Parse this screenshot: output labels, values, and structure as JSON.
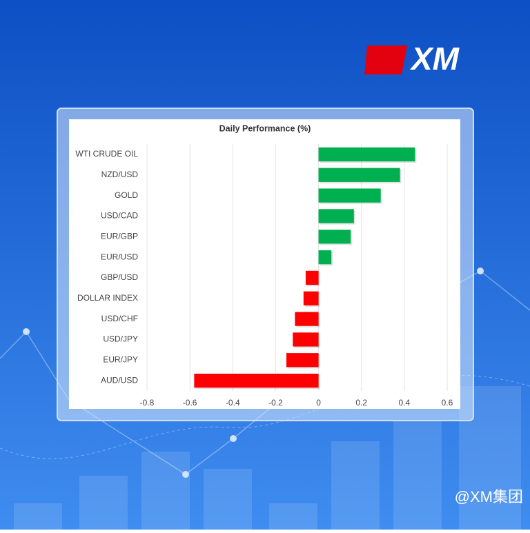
{
  "brand": {
    "logo": "XM",
    "watermark": "@XM集团"
  },
  "chart_data": {
    "type": "bar",
    "orientation": "horizontal",
    "title": "Daily Performance (%)",
    "categories": [
      "WTI CRUDE OIL",
      "NZD/USD",
      "GOLD",
      "USD/CAD",
      "EUR/GBP",
      "EUR/USD",
      "GBP/USD",
      "DOLLAR INDEX",
      "USD/CHF",
      "USD/JPY",
      "EUR/JPY",
      "AUD/USD"
    ],
    "values": [
      0.45,
      0.38,
      0.29,
      0.165,
      0.15,
      0.06,
      -0.06,
      -0.07,
      -0.11,
      -0.12,
      -0.15,
      -0.58
    ],
    "positive_color": "#00b050",
    "negative_color": "#ff0000",
    "xlim": [
      -0.8,
      0.6
    ],
    "xticks": [
      -0.8,
      -0.6,
      -0.4,
      -0.2,
      0,
      0.2,
      0.4,
      0.6
    ],
    "grid": true
  }
}
